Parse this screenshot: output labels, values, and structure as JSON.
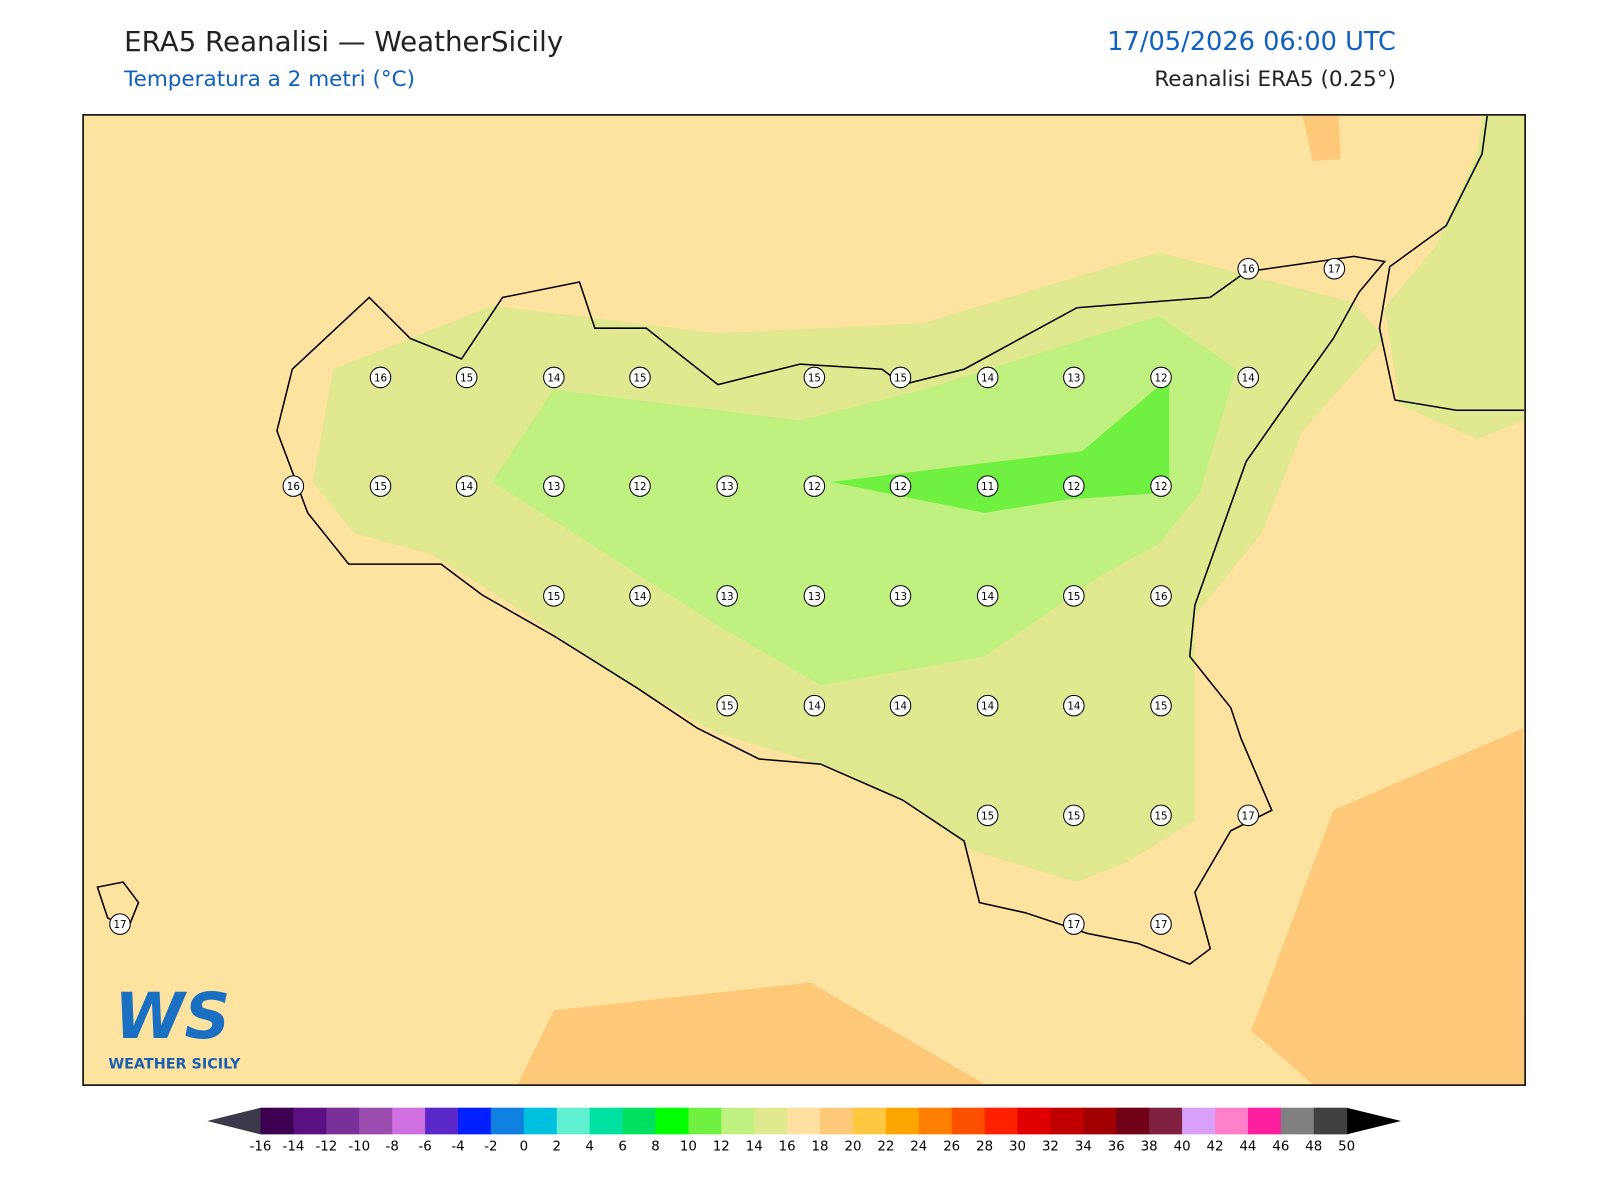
{
  "header": {
    "title": "ERA5 Reanalisi — WeatherSicily",
    "subtitle": "Temperatura a 2 metri (°C)",
    "date": "17/05/2026 06:00 UTC",
    "source": "Reanalisi ERA5 (0.25°)"
  },
  "stations": [
    16,
    17,
    16,
    15,
    14,
    15,
    15,
    15,
    14,
    13,
    12,
    14,
    16,
    15,
    14,
    13,
    12,
    13,
    12,
    12,
    11,
    12,
    12,
    15,
    14,
    13,
    13,
    13,
    14,
    15,
    16,
    15,
    14,
    14,
    14,
    14,
    15,
    15,
    15,
    15,
    17,
    17,
    17,
    17
  ],
  "logo": {
    "mark": "WS",
    "name": "WEATHER SICILY"
  },
  "colorbar": {
    "ticks": [
      -16,
      -14,
      -12,
      -10,
      -8,
      -6,
      -4,
      -2,
      0,
      2,
      4,
      6,
      8,
      10,
      12,
      14,
      16,
      18,
      20,
      22,
      24,
      26,
      28,
      30,
      32,
      34,
      36,
      38,
      40,
      42,
      44,
      46,
      48,
      50
    ],
    "colors": [
      "#3d0050",
      "#5a1080",
      "#7a3099",
      "#9b4db0",
      "#d070e0",
      "#5a28c8",
      "#0020ff",
      "#1080e0",
      "#00c0e0",
      "#60f0d0",
      "#00e0a0",
      "#00e060",
      "#00ff00",
      "#70f040",
      "#c0f080",
      "#e0e890",
      "#ffe0a0",
      "#fdc878",
      "#ffc840",
      "#ffa500",
      "#ff8000",
      "#ff5000",
      "#ff2000",
      "#e00000",
      "#c00000",
      "#a00000",
      "#700018",
      "#802040",
      "#d8a0f8",
      "#ff80c8",
      "#ff20a0",
      "#808080",
      "#404040"
    ],
    "under": "#3a3a4a",
    "over": "#000000"
  }
}
